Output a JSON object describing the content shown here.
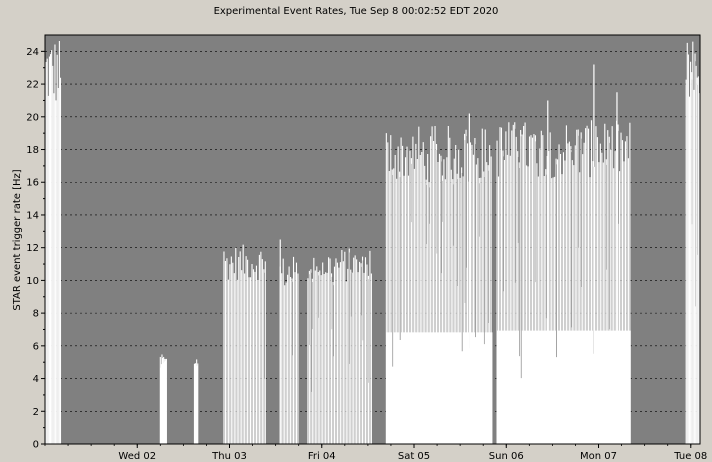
{
  "chart_data": {
    "type": "bar",
    "title": "Experimental Event Rates, Tue Sep  8 00:02:52 EDT 2020",
    "ylabel": "STAR event trigger rate [Hz]",
    "xlabel": "",
    "ylim": [
      0,
      25
    ],
    "yticks": [
      0,
      2,
      4,
      6,
      8,
      10,
      12,
      14,
      16,
      18,
      20,
      22,
      24
    ],
    "xlim_days": [
      0,
      7.1
    ],
    "x_unit": "days (Sep 1 2020, 00:00 EDT = 0)",
    "x_ticks": [
      {
        "label": "Wed 02",
        "day": 1.0
      },
      {
        "label": "Thu 03",
        "day": 2.0
      },
      {
        "label": "Fri 04",
        "day": 3.0
      },
      {
        "label": "Sat 05",
        "day": 4.0
      },
      {
        "label": "Sun 06",
        "day": 5.0
      },
      {
        "label": "Mon 07",
        "day": 6.0
      },
      {
        "label": "Tue 08",
        "day": 7.0
      }
    ],
    "grid": true,
    "plot_background": "#808080",
    "bar_color": "#ffffff",
    "series": [
      {
        "segments": [
          {
            "start": 0.0,
            "end": 0.18,
            "low": 0.0,
            "high": 25.0,
            "spacing": 0.012,
            "depth": 0.5
          },
          {
            "start": 1.25,
            "end": 1.32,
            "low": 0.0,
            "high": 5.5,
            "spacing": 0.006,
            "depth": 0.3
          },
          {
            "start": 1.62,
            "end": 1.66,
            "low": 0.0,
            "high": 5.5,
            "spacing": 0.006,
            "depth": 0.3
          },
          {
            "start": 1.94,
            "end": 2.4,
            "low": 0.0,
            "high": 12.2,
            "spacing": 0.016,
            "depth": 0.8
          },
          {
            "start": 2.55,
            "end": 2.75,
            "low": 0.0,
            "high": 11.5,
            "spacing": 0.016,
            "depth": 0.8
          },
          {
            "start": 2.85,
            "end": 3.55,
            "low": 0.0,
            "high": 12.0,
            "spacing": 0.016,
            "depth": 0.8
          },
          {
            "start": 3.7,
            "end": 4.85,
            "low": 2.5,
            "high": 19.5,
            "spacing": 0.016,
            "depth": 0.75
          },
          {
            "start": 4.9,
            "end": 6.35,
            "low": 5.5,
            "high": 19.8,
            "spacing": 0.016,
            "depth": 0.75
          },
          {
            "start": 6.95,
            "end": 7.1,
            "low": 0.0,
            "high": 25.0,
            "spacing": 0.012,
            "depth": 0.5
          }
        ],
        "peaks": [
          {
            "day": 5.95,
            "value": 23.2
          },
          {
            "day": 6.2,
            "value": 21.5
          },
          {
            "day": 5.45,
            "value": 21.0
          },
          {
            "day": 4.6,
            "value": 20.2
          },
          {
            "day": 2.55,
            "value": 12.5
          }
        ]
      }
    ]
  }
}
